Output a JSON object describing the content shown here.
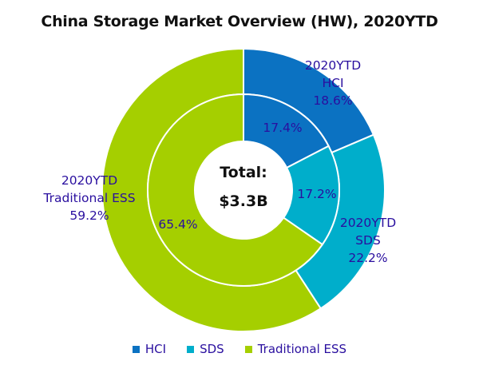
{
  "chart_data": {
    "type": "pie",
    "subtype": "nested-donut",
    "title": "China Storage Market Overview (HW), 2020YTD",
    "center_label": {
      "line1": "Total:",
      "line2": "$3.3B"
    },
    "categories": [
      "HCI",
      "SDS",
      "Traditional ESS"
    ],
    "colors": [
      "#0b72c2",
      "#00aecb",
      "#a5cf00"
    ],
    "series": [
      {
        "name": "2020YTD (outer ring)",
        "ring": "outer",
        "values": [
          18.6,
          22.2,
          59.2
        ],
        "labels": [
          "2020YTD\nHCI\n18.6%",
          "2020YTD\nSDS\n22.2%",
          "2020YTD\nTraditional ESS\n59.2%"
        ]
      },
      {
        "name": "inner ring",
        "ring": "inner",
        "values": [
          17.4,
          17.2,
          65.4
        ],
        "labels": [
          "17.4%",
          "17.2%",
          "65.4%"
        ]
      }
    ],
    "legend": {
      "position": "bottom",
      "entries": [
        "HCI",
        "SDS",
        "Traditional ESS"
      ]
    },
    "unit": "%"
  },
  "labels": {
    "outer_hci": [
      "2020YTD",
      "HCI",
      "18.6%"
    ],
    "outer_sds": [
      "2020YTD",
      "SDS",
      "22.2%"
    ],
    "outer_ess": [
      "2020YTD",
      "Traditional ESS",
      "59.2%"
    ],
    "inner_hci": "17.4%",
    "inner_sds": "17.2%",
    "inner_ess": "65.4%"
  }
}
